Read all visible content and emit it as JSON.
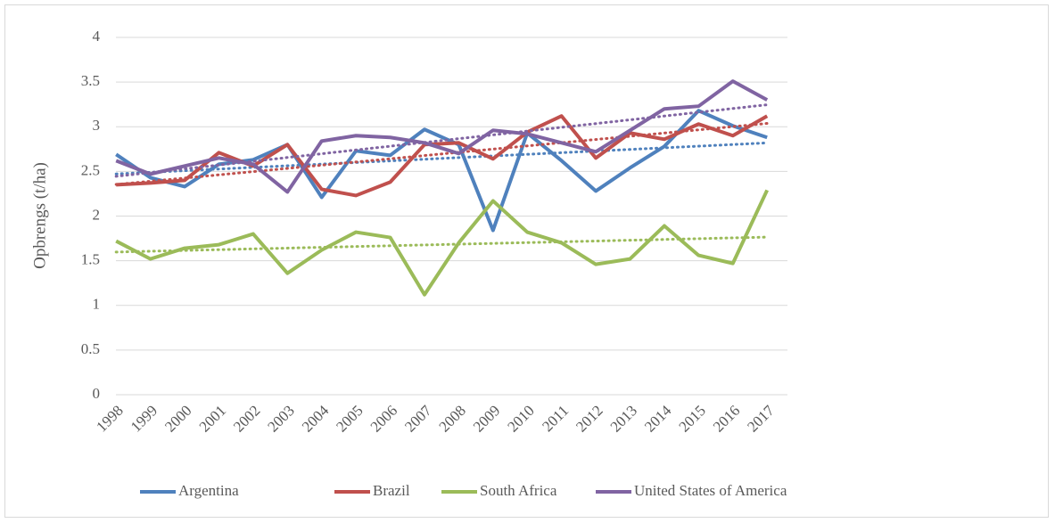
{
  "chart_data": {
    "type": "line",
    "y_label": "Opbrengs (t/ha)",
    "categories": [
      "1998",
      "1999",
      "2000",
      "2001",
      "2002",
      "2003",
      "2004",
      "2005",
      "2006",
      "2007",
      "2008",
      "2009",
      "2010",
      "2011",
      "2012",
      "2013",
      "2014",
      "2015",
      "2016",
      "2017"
    ],
    "series": [
      {
        "name": "Argentina",
        "color": "#4f81bd",
        "values": [
          2.69,
          2.43,
          2.33,
          2.58,
          2.63,
          2.8,
          2.21,
          2.73,
          2.68,
          2.97,
          2.8,
          1.84,
          2.93,
          2.62,
          2.28,
          2.54,
          2.78,
          3.18,
          3.01,
          2.88
        ]
      },
      {
        "name": "Brazil",
        "color": "#c0504d",
        "values": [
          2.35,
          2.37,
          2.4,
          2.71,
          2.56,
          2.8,
          2.3,
          2.23,
          2.38,
          2.8,
          2.82,
          2.64,
          2.94,
          3.12,
          2.65,
          2.93,
          2.86,
          3.03,
          2.9,
          3.12
        ]
      },
      {
        "name": "South Africa",
        "color": "#9bbb59",
        "values": [
          1.72,
          1.52,
          1.64,
          1.68,
          1.8,
          1.36,
          1.62,
          1.82,
          1.76,
          1.12,
          1.7,
          2.17,
          1.82,
          1.7,
          1.46,
          1.52,
          1.89,
          1.56,
          1.47,
          2.29
        ]
      },
      {
        "name": "United States of America",
        "color": "#8064a2",
        "values": [
          2.62,
          2.47,
          2.56,
          2.65,
          2.58,
          2.27,
          2.84,
          2.9,
          2.88,
          2.82,
          2.7,
          2.96,
          2.92,
          2.82,
          2.72,
          2.96,
          3.2,
          3.23,
          3.51,
          3.3
        ]
      }
    ],
    "trendline": "linear",
    "ylim": [
      0,
      4
    ],
    "yticks": [
      0,
      0.5,
      1,
      1.5,
      2,
      2.5,
      3,
      3.5,
      4
    ],
    "grid": true,
    "legend": "bottom"
  }
}
